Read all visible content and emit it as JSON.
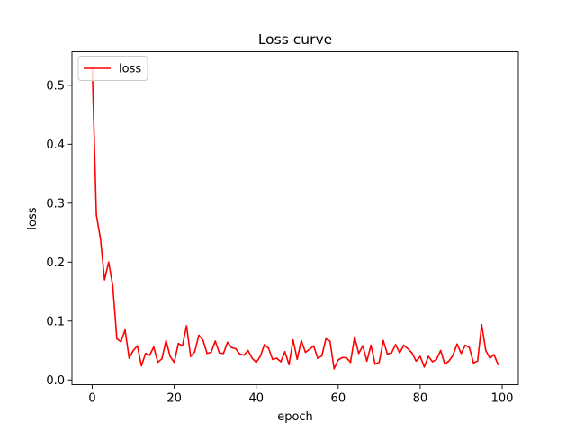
{
  "chart_data": {
    "type": "line",
    "title": "Loss curve",
    "xlabel": "epoch",
    "ylabel": "loss",
    "xlim": [
      -4.95,
      103.95
    ],
    "ylim": [
      -0.008,
      0.557
    ],
    "xticks": [
      0,
      20,
      40,
      60,
      80,
      100
    ],
    "yticks": [
      0.0,
      0.1,
      0.2,
      0.3,
      0.4,
      0.5
    ],
    "xtick_labels": [
      "0",
      "20",
      "40",
      "60",
      "80",
      "100"
    ],
    "ytick_labels": [
      "0.0",
      "0.1",
      "0.2",
      "0.3",
      "0.4",
      "0.5"
    ],
    "grid": false,
    "legend": {
      "position": "top-left"
    },
    "colors": {
      "line": "#ff0000",
      "frame": "#000000",
      "legend_border": "#cccccc"
    },
    "series": [
      {
        "name": "loss",
        "x": [
          0,
          1,
          2,
          3,
          4,
          5,
          6,
          7,
          8,
          9,
          10,
          11,
          12,
          13,
          14,
          15,
          16,
          17,
          18,
          19,
          20,
          21,
          22,
          23,
          24,
          25,
          26,
          27,
          28,
          29,
          30,
          31,
          32,
          33,
          34,
          35,
          36,
          37,
          38,
          39,
          40,
          41,
          42,
          43,
          44,
          45,
          46,
          47,
          48,
          49,
          50,
          51,
          52,
          53,
          54,
          55,
          56,
          57,
          58,
          59,
          60,
          61,
          62,
          63,
          64,
          65,
          66,
          67,
          68,
          69,
          70,
          71,
          72,
          73,
          74,
          75,
          76,
          77,
          78,
          79,
          80,
          81,
          82,
          83,
          84,
          85,
          86,
          87,
          88,
          89,
          90,
          91,
          92,
          93,
          94,
          95,
          96,
          97,
          98,
          99
        ],
        "values": [
          0.53,
          0.28,
          0.24,
          0.17,
          0.2,
          0.16,
          0.07,
          0.065,
          0.085,
          0.037,
          0.05,
          0.058,
          0.024,
          0.045,
          0.042,
          0.056,
          0.03,
          0.036,
          0.067,
          0.04,
          0.03,
          0.062,
          0.058,
          0.092,
          0.04,
          0.048,
          0.076,
          0.068,
          0.045,
          0.047,
          0.066,
          0.046,
          0.045,
          0.064,
          0.055,
          0.053,
          0.044,
          0.042,
          0.05,
          0.037,
          0.03,
          0.04,
          0.06,
          0.054,
          0.035,
          0.037,
          0.031,
          0.048,
          0.026,
          0.068,
          0.035,
          0.067,
          0.047,
          0.052,
          0.058,
          0.037,
          0.041,
          0.07,
          0.066,
          0.019,
          0.034,
          0.038,
          0.038,
          0.03,
          0.073,
          0.045,
          0.058,
          0.032,
          0.059,
          0.027,
          0.03,
          0.067,
          0.044,
          0.046,
          0.06,
          0.046,
          0.059,
          0.053,
          0.046,
          0.032,
          0.04,
          0.022,
          0.04,
          0.031,
          0.035,
          0.05,
          0.027,
          0.032,
          0.042,
          0.061,
          0.045,
          0.059,
          0.055,
          0.029,
          0.032,
          0.094,
          0.05,
          0.037,
          0.043,
          0.026
        ]
      }
    ]
  }
}
